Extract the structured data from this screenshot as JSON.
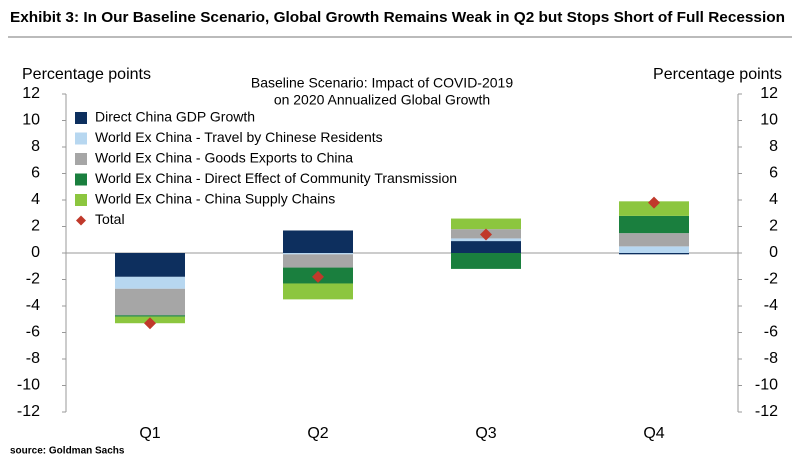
{
  "exhibit_title": "Exhibit 3: In Our Baseline Scenario, Global Growth Remains Weak in Q2 but Stops Short of Full Recession",
  "source": "source: Goldman Sachs",
  "chart_data": {
    "type": "stacked-bar",
    "title": [
      "Baseline Scenario: Impact of COVID-2019",
      "on 2020 Annualized Global Growth"
    ],
    "ylabel": "Percentage points",
    "y2label": "Percentage points",
    "categories": [
      "Q1",
      "Q2",
      "Q3",
      "Q4"
    ],
    "series": [
      {
        "name": "Direct China GDP Growth",
        "color": "#0d2f5e",
        "values": [
          -1.8,
          1.7,
          0.9,
          -0.1
        ]
      },
      {
        "name": "World Ex China - Travel by Chinese Residents",
        "color": "#b7d7f0",
        "values": [
          -0.9,
          -0.1,
          0.2,
          0.5
        ]
      },
      {
        "name": "World Ex China - Goods Exports to China",
        "color": "#a6a6a6",
        "values": [
          -2.0,
          -1.0,
          0.7,
          1.0
        ]
      },
      {
        "name": "World Ex China - Direct Effect of Community Transmission",
        "color": "#1a7f3e",
        "values": [
          -0.1,
          -1.2,
          -1.2,
          1.3
        ]
      },
      {
        "name": "World Ex China - China Supply Chains",
        "color": "#8cc63f",
        "values": [
          -0.5,
          -1.2,
          0.8,
          1.1
        ]
      },
      {
        "name": "Total",
        "color": "#c0392b",
        "type": "scatter",
        "values": [
          -5.3,
          -1.8,
          1.4,
          3.8
        ]
      }
    ],
    "ylim": [
      -12,
      12
    ],
    "yticks": [
      -12,
      -10,
      -8,
      -6,
      -4,
      -2,
      0,
      2,
      4,
      6,
      8,
      10,
      12
    ],
    "y2lim": [
      -12,
      12
    ],
    "y2ticks": [
      -12,
      -10,
      -8,
      -6,
      -4,
      -2,
      0,
      2,
      4,
      6,
      8,
      10,
      12
    ],
    "grid": false
  }
}
